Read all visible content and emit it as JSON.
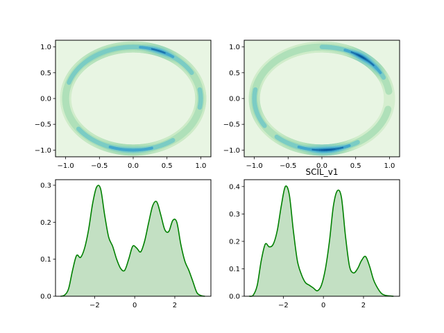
{
  "chart_data": [
    {
      "type": "contour",
      "title": "",
      "xlabel": "",
      "ylabel": "",
      "xlim": [
        -1.15,
        1.15
      ],
      "ylim": [
        -1.13,
        1.13
      ],
      "xticks": [
        -1.0,
        -0.5,
        0.0,
        0.5,
        1.0
      ],
      "yticks": [
        -1.0,
        -0.5,
        0.0,
        0.5,
        1.0
      ],
      "xtick_labels": [
        "−1.0",
        "−0.5",
        "0.0",
        "0.5",
        "1.0"
      ],
      "ytick_labels": [
        "−1.0",
        "−0.5",
        "0.0",
        "0.5",
        "1.0"
      ],
      "background_color": "#e8f5e3",
      "density": [
        {
          "angle": 90,
          "level": 0.55
        },
        {
          "angle": 68,
          "level": 0.85
        },
        {
          "angle": 45,
          "level": 0.5
        },
        {
          "angle": 20,
          "level": 0.35
        },
        {
          "angle": 0,
          "level": 0.45
        },
        {
          "angle": -20,
          "level": 0.35
        },
        {
          "angle": -55,
          "level": 0.4
        },
        {
          "angle": -90,
          "level": 0.75
        },
        {
          "angle": -130,
          "level": 0.45
        },
        {
          "angle": -165,
          "level": 0.3
        },
        {
          "angle": 180,
          "level": 0.3
        },
        {
          "angle": 150,
          "level": 0.45
        },
        {
          "angle": 128,
          "level": 0.6
        }
      ]
    },
    {
      "type": "contour",
      "title": "",
      "xlabel": "",
      "ylabel": "",
      "xlim": [
        -1.15,
        1.15
      ],
      "ylim": [
        -1.13,
        1.13
      ],
      "xticks": [
        -1.0,
        -0.5,
        0.0,
        0.5,
        1.0
      ],
      "yticks": [
        -1.0,
        -0.5,
        0.0,
        0.5,
        1.0
      ],
      "xtick_labels": [
        "−1.0",
        "−0.5",
        "0.0",
        "0.5",
        "1.0"
      ],
      "ytick_labels": [
        "−1.0",
        "−0.5",
        "0.0",
        "0.5",
        "1.0"
      ],
      "background_color": "#e8f5e3",
      "density": [
        {
          "angle": 100,
          "level": 0.35
        },
        {
          "angle": 75,
          "level": 0.5
        },
        {
          "angle": 55,
          "level": 1.0
        },
        {
          "angle": 40,
          "level": 0.8
        },
        {
          "angle": 20,
          "level": 0.35
        },
        {
          "angle": 5,
          "level": 0.2
        },
        {
          "angle": -50,
          "level": 0.3
        },
        {
          "angle": -85,
          "level": 1.0
        },
        {
          "angle": -110,
          "level": 0.6
        },
        {
          "angle": -140,
          "level": 0.35
        },
        {
          "angle": -165,
          "level": 0.55
        },
        {
          "angle": 150,
          "level": 0.3
        }
      ]
    },
    {
      "type": "area",
      "title": "",
      "xlabel": "",
      "ylabel": "",
      "xlim": [
        -3.95,
        3.8
      ],
      "ylim": [
        0,
        0.315
      ],
      "xticks": [
        -2,
        0,
        2
      ],
      "yticks": [
        0.0,
        0.1,
        0.2,
        0.3
      ],
      "xtick_labels": [
        "−2",
        "0",
        "2"
      ],
      "ytick_labels": [
        "0.0",
        "0.1",
        "0.2",
        "0.3"
      ],
      "line_color": "#008000",
      "fill_color": "#c3e0c3",
      "x": [
        -3.7,
        -3.5,
        -3.3,
        -3.1,
        -2.9,
        -2.7,
        -2.5,
        -2.3,
        -2.1,
        -1.9,
        -1.7,
        -1.5,
        -1.3,
        -1.1,
        -0.9,
        -0.7,
        -0.5,
        -0.3,
        -0.1,
        0.1,
        0.3,
        0.5,
        0.7,
        0.9,
        1.1,
        1.3,
        1.5,
        1.7,
        1.9,
        2.1,
        2.3,
        2.5,
        2.7,
        2.9,
        3.1,
        3.3,
        3.5
      ],
      "y": [
        0.0,
        0.003,
        0.02,
        0.07,
        0.11,
        0.105,
        0.13,
        0.18,
        0.25,
        0.295,
        0.29,
        0.22,
        0.16,
        0.135,
        0.1,
        0.075,
        0.07,
        0.1,
        0.135,
        0.13,
        0.12,
        0.15,
        0.2,
        0.245,
        0.255,
        0.22,
        0.18,
        0.175,
        0.205,
        0.2,
        0.14,
        0.095,
        0.07,
        0.04,
        0.01,
        0.002,
        0.0
      ]
    },
    {
      "type": "area",
      "title": "SCIL_v1",
      "xlabel": "",
      "ylabel": "",
      "xlim": [
        -3.95,
        3.8
      ],
      "ylim": [
        0,
        0.425
      ],
      "xticks": [
        -2,
        0,
        2
      ],
      "yticks": [
        0.0,
        0.1,
        0.2,
        0.3,
        0.4
      ],
      "xtick_labels": [
        "−2",
        "0",
        "2"
      ],
      "ytick_labels": [
        "0.0",
        "0.1",
        "0.2",
        "0.3",
        "0.4"
      ],
      "line_color": "#008000",
      "fill_color": "#c3e0c3",
      "x": [
        -3.7,
        -3.5,
        -3.3,
        -3.1,
        -2.9,
        -2.7,
        -2.5,
        -2.3,
        -2.1,
        -1.9,
        -1.7,
        -1.5,
        -1.3,
        -1.1,
        -0.9,
        -0.7,
        -0.5,
        -0.3,
        -0.1,
        0.1,
        0.3,
        0.5,
        0.7,
        0.9,
        1.1,
        1.3,
        1.5,
        1.7,
        1.9,
        2.1,
        2.3,
        2.5,
        2.7,
        2.9,
        3.1,
        3.3,
        3.5
      ],
      "y": [
        0.0,
        0.004,
        0.04,
        0.13,
        0.19,
        0.18,
        0.19,
        0.24,
        0.33,
        0.4,
        0.37,
        0.24,
        0.13,
        0.08,
        0.05,
        0.04,
        0.03,
        0.02,
        0.04,
        0.1,
        0.2,
        0.33,
        0.385,
        0.36,
        0.22,
        0.11,
        0.085,
        0.1,
        0.13,
        0.145,
        0.11,
        0.06,
        0.03,
        0.01,
        0.003,
        0.001,
        0.0
      ]
    }
  ]
}
